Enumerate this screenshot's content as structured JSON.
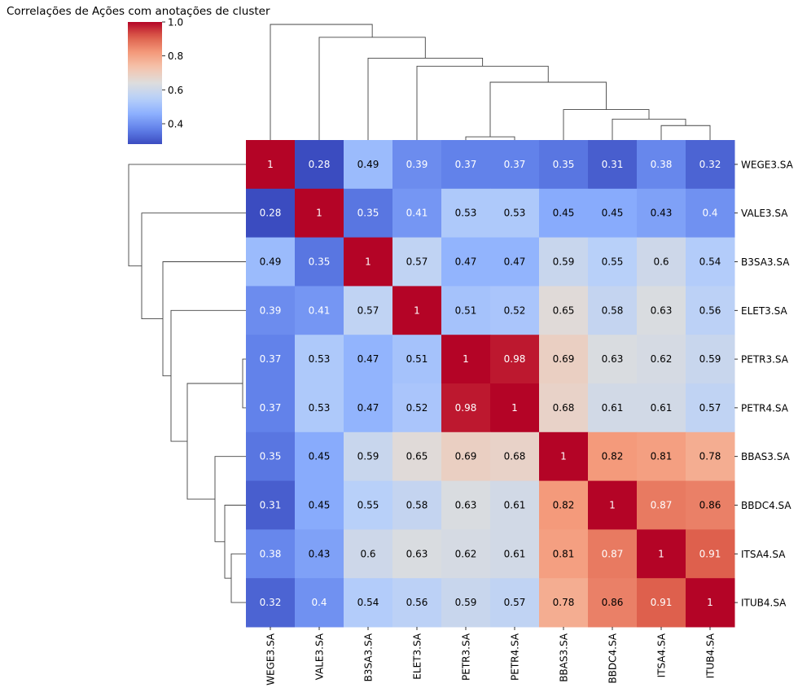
{
  "chart_data": {
    "type": "heatmap",
    "title": "Correlações de Ações com anotações de cluster",
    "row_labels": [
      "WEGE3.SA",
      "VALE3.SA",
      "B3SA3.SA",
      "ELET3.SA",
      "PETR3.SA",
      "PETR4.SA",
      "BBAS3.SA",
      "BBDC4.SA",
      "ITSA4.SA",
      "ITUB4.SA"
    ],
    "col_labels": [
      "WEGE3.SA",
      "VALE3.SA",
      "B3SA3.SA",
      "ELET3.SA",
      "PETR3.SA",
      "PETR4.SA",
      "BBAS3.SA",
      "BBDC4.SA",
      "ITSA4.SA",
      "ITUB4.SA"
    ],
    "values": [
      [
        1,
        0.28,
        0.49,
        0.39,
        0.37,
        0.37,
        0.35,
        0.31,
        0.38,
        0.32
      ],
      [
        0.28,
        1,
        0.35,
        0.41,
        0.53,
        0.53,
        0.45,
        0.45,
        0.43,
        0.4
      ],
      [
        0.49,
        0.35,
        1,
        0.57,
        0.47,
        0.47,
        0.59,
        0.55,
        0.6,
        0.54
      ],
      [
        0.39,
        0.41,
        0.57,
        1,
        0.51,
        0.52,
        0.65,
        0.58,
        0.63,
        0.56
      ],
      [
        0.37,
        0.53,
        0.47,
        0.51,
        1,
        0.98,
        0.69,
        0.63,
        0.62,
        0.59
      ],
      [
        0.37,
        0.53,
        0.47,
        0.52,
        0.98,
        1,
        0.68,
        0.61,
        0.61,
        0.57
      ],
      [
        0.35,
        0.45,
        0.59,
        0.65,
        0.69,
        0.68,
        1,
        0.82,
        0.81,
        0.78
      ],
      [
        0.31,
        0.45,
        0.55,
        0.58,
        0.63,
        0.61,
        0.82,
        1,
        0.87,
        0.86
      ],
      [
        0.38,
        0.43,
        0.6,
        0.63,
        0.62,
        0.61,
        0.81,
        0.87,
        1,
        0.91
      ],
      [
        0.32,
        0.4,
        0.54,
        0.56,
        0.59,
        0.57,
        0.78,
        0.86,
        0.91,
        1
      ]
    ],
    "colormap": "coolwarm",
    "vmin": 0.28,
    "vmax": 1.0,
    "colorbar_ticks": [
      "0.4",
      "0.6",
      "0.8",
      "1.0"
    ],
    "colorbar_tick_values": [
      0.4,
      0.6,
      0.8,
      1.0
    ],
    "annotated": true,
    "dendrogram": {
      "linkage": [
        [
          4,
          5
        ],
        [
          8,
          9
        ],
        [
          7,
          11
        ],
        [
          6,
          12
        ],
        [
          10,
          13
        ],
        [
          3,
          14
        ],
        [
          2,
          15
        ],
        [
          1,
          16
        ],
        [
          0,
          17
        ]
      ],
      "merge_levels": [
        0.02,
        0.09,
        0.13,
        0.19,
        0.36,
        0.46,
        0.51,
        0.64,
        0.72
      ]
    }
  }
}
